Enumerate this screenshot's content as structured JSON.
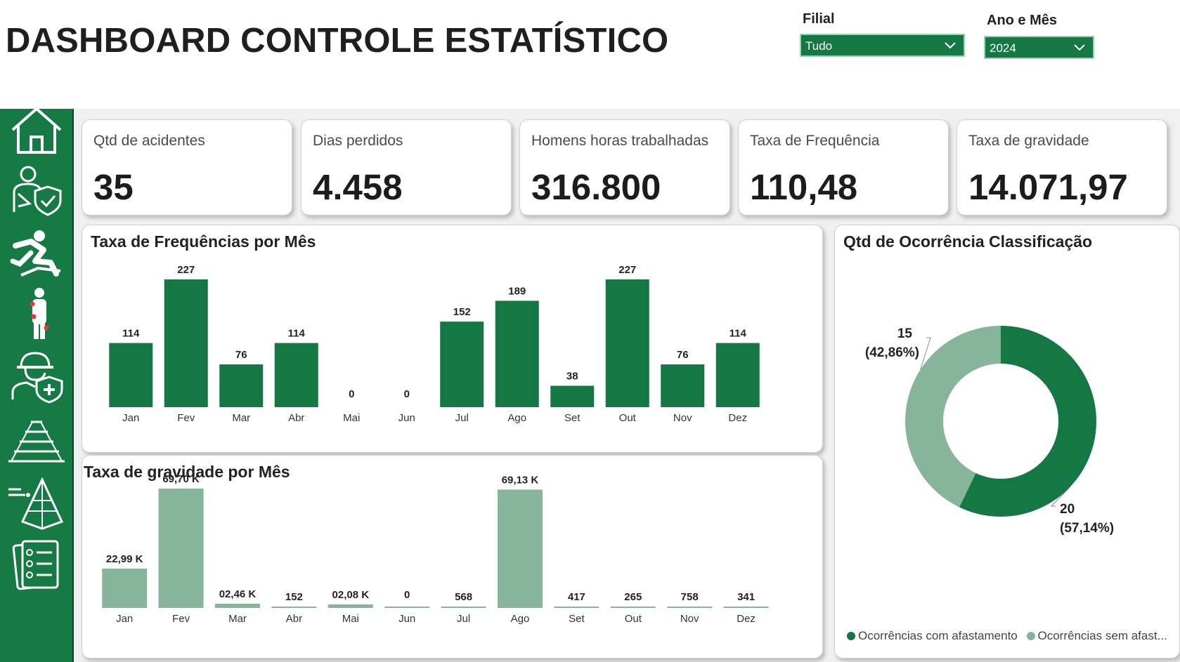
{
  "header": {
    "title": "DASHBOARD CONTROLE ESTATÍSTICO",
    "filial_label": "Filial",
    "filial_value": "Tudo",
    "periodo_label": "Ano e Mês",
    "periodo_value": "2024"
  },
  "sidebar": {
    "items": [
      {
        "icon": "home-icon"
      },
      {
        "icon": "injured-person-shield-icon"
      },
      {
        "icon": "falling-person-icon"
      },
      {
        "icon": "body-injury-points-icon"
      },
      {
        "icon": "worker-health-shield-icon"
      },
      {
        "icon": "pyramid-layers-icon"
      },
      {
        "icon": "pyramid-diagram-icon"
      },
      {
        "icon": "checklist-icon"
      }
    ]
  },
  "kpis": [
    {
      "label": "Qtd de acidentes",
      "value": "35"
    },
    {
      "label": "Dias perdidos",
      "value": "4.458"
    },
    {
      "label": "Homens horas trabalhadas",
      "value": "316.800"
    },
    {
      "label": "Taxa de Frequência",
      "value": "110,48"
    },
    {
      "label": "Taxa de gravidade",
      "value": "14.071,97"
    }
  ],
  "colors": {
    "brand": "#157743",
    "light_green": "#86b59b",
    "background": "#f0f0f0"
  },
  "chart_data": [
    {
      "type": "bar",
      "title": "Taxa de Frequências por Mês",
      "categories": [
        "Jan",
        "Fev",
        "Mar",
        "Abr",
        "Mai",
        "Jun",
        "Jul",
        "Ago",
        "Set",
        "Out",
        "Nov",
        "Dez"
      ],
      "values": [
        114,
        227,
        76,
        114,
        0,
        0,
        152,
        189,
        38,
        227,
        76,
        114
      ],
      "labels": [
        "114",
        "227",
        "76",
        "114",
        "0",
        "0",
        "152",
        "189",
        "38",
        "227",
        "76",
        "114"
      ],
      "ylim": [
        0,
        227
      ],
      "color": "#157743",
      "grid": false
    },
    {
      "type": "bar",
      "title": "Taxa de gravidade por Mês",
      "categories": [
        "Jan",
        "Fev",
        "Mar",
        "Abr",
        "Mai",
        "Jun",
        "Jul",
        "Ago",
        "Set",
        "Out",
        "Nov",
        "Dez"
      ],
      "values": [
        22990,
        69700,
        2460,
        152,
        2080,
        0,
        568,
        69130,
        417,
        265,
        758,
        341
      ],
      "labels": [
        "22,99 K",
        "69,70 K",
        "02,46 K",
        "152",
        "02,08 K",
        "0",
        "568",
        "69,13 K",
        "417",
        "265",
        "758",
        "341"
      ],
      "ylim": [
        0,
        69700
      ],
      "color": "#86b59b",
      "grid": false
    },
    {
      "type": "pie",
      "title": "Qtd de Ocorrência Classificação",
      "categories": [
        "Ocorrências com afastamento",
        "Ocorrências sem afast..."
      ],
      "values": [
        20,
        15
      ],
      "value_labels": [
        "20",
        "15"
      ],
      "percent_labels": [
        "(57,14%)",
        "(42,86%)"
      ],
      "colors": [
        "#157743",
        "#86b59b"
      ],
      "legend": "bottom"
    }
  ]
}
